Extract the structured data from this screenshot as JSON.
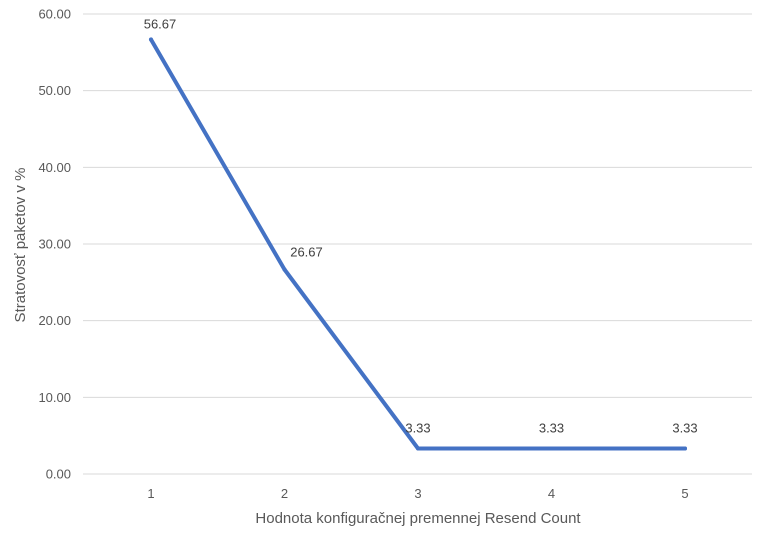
{
  "chart_data": {
    "type": "line",
    "title": "",
    "xlabel": "Hodnota konfiguračnej premennej Resend Count",
    "ylabel": "Stratovosť paketov v %",
    "x": [
      1,
      2,
      3,
      4,
      5
    ],
    "x_tick_labels": [
      "1",
      "2",
      "3",
      "4",
      "5"
    ],
    "series": [
      {
        "values": [
          56.67,
          26.67,
          3.33,
          3.33,
          3.33
        ],
        "data_labels": [
          "56.67",
          "26.67",
          "3.33",
          "3.33",
          "3.33"
        ],
        "color": "#4472c4"
      }
    ],
    "ylim": [
      0,
      60
    ],
    "y_ticks": [
      0,
      10,
      20,
      30,
      40,
      50,
      60
    ],
    "y_tick_labels": [
      "0.00",
      "10.00",
      "20.00",
      "30.00",
      "40.00",
      "50.00",
      "60.00"
    ],
    "grid": "horizontal",
    "legend": "none",
    "colors": {
      "grid": "#d9d9d9",
      "series": "#4472c4"
    }
  }
}
